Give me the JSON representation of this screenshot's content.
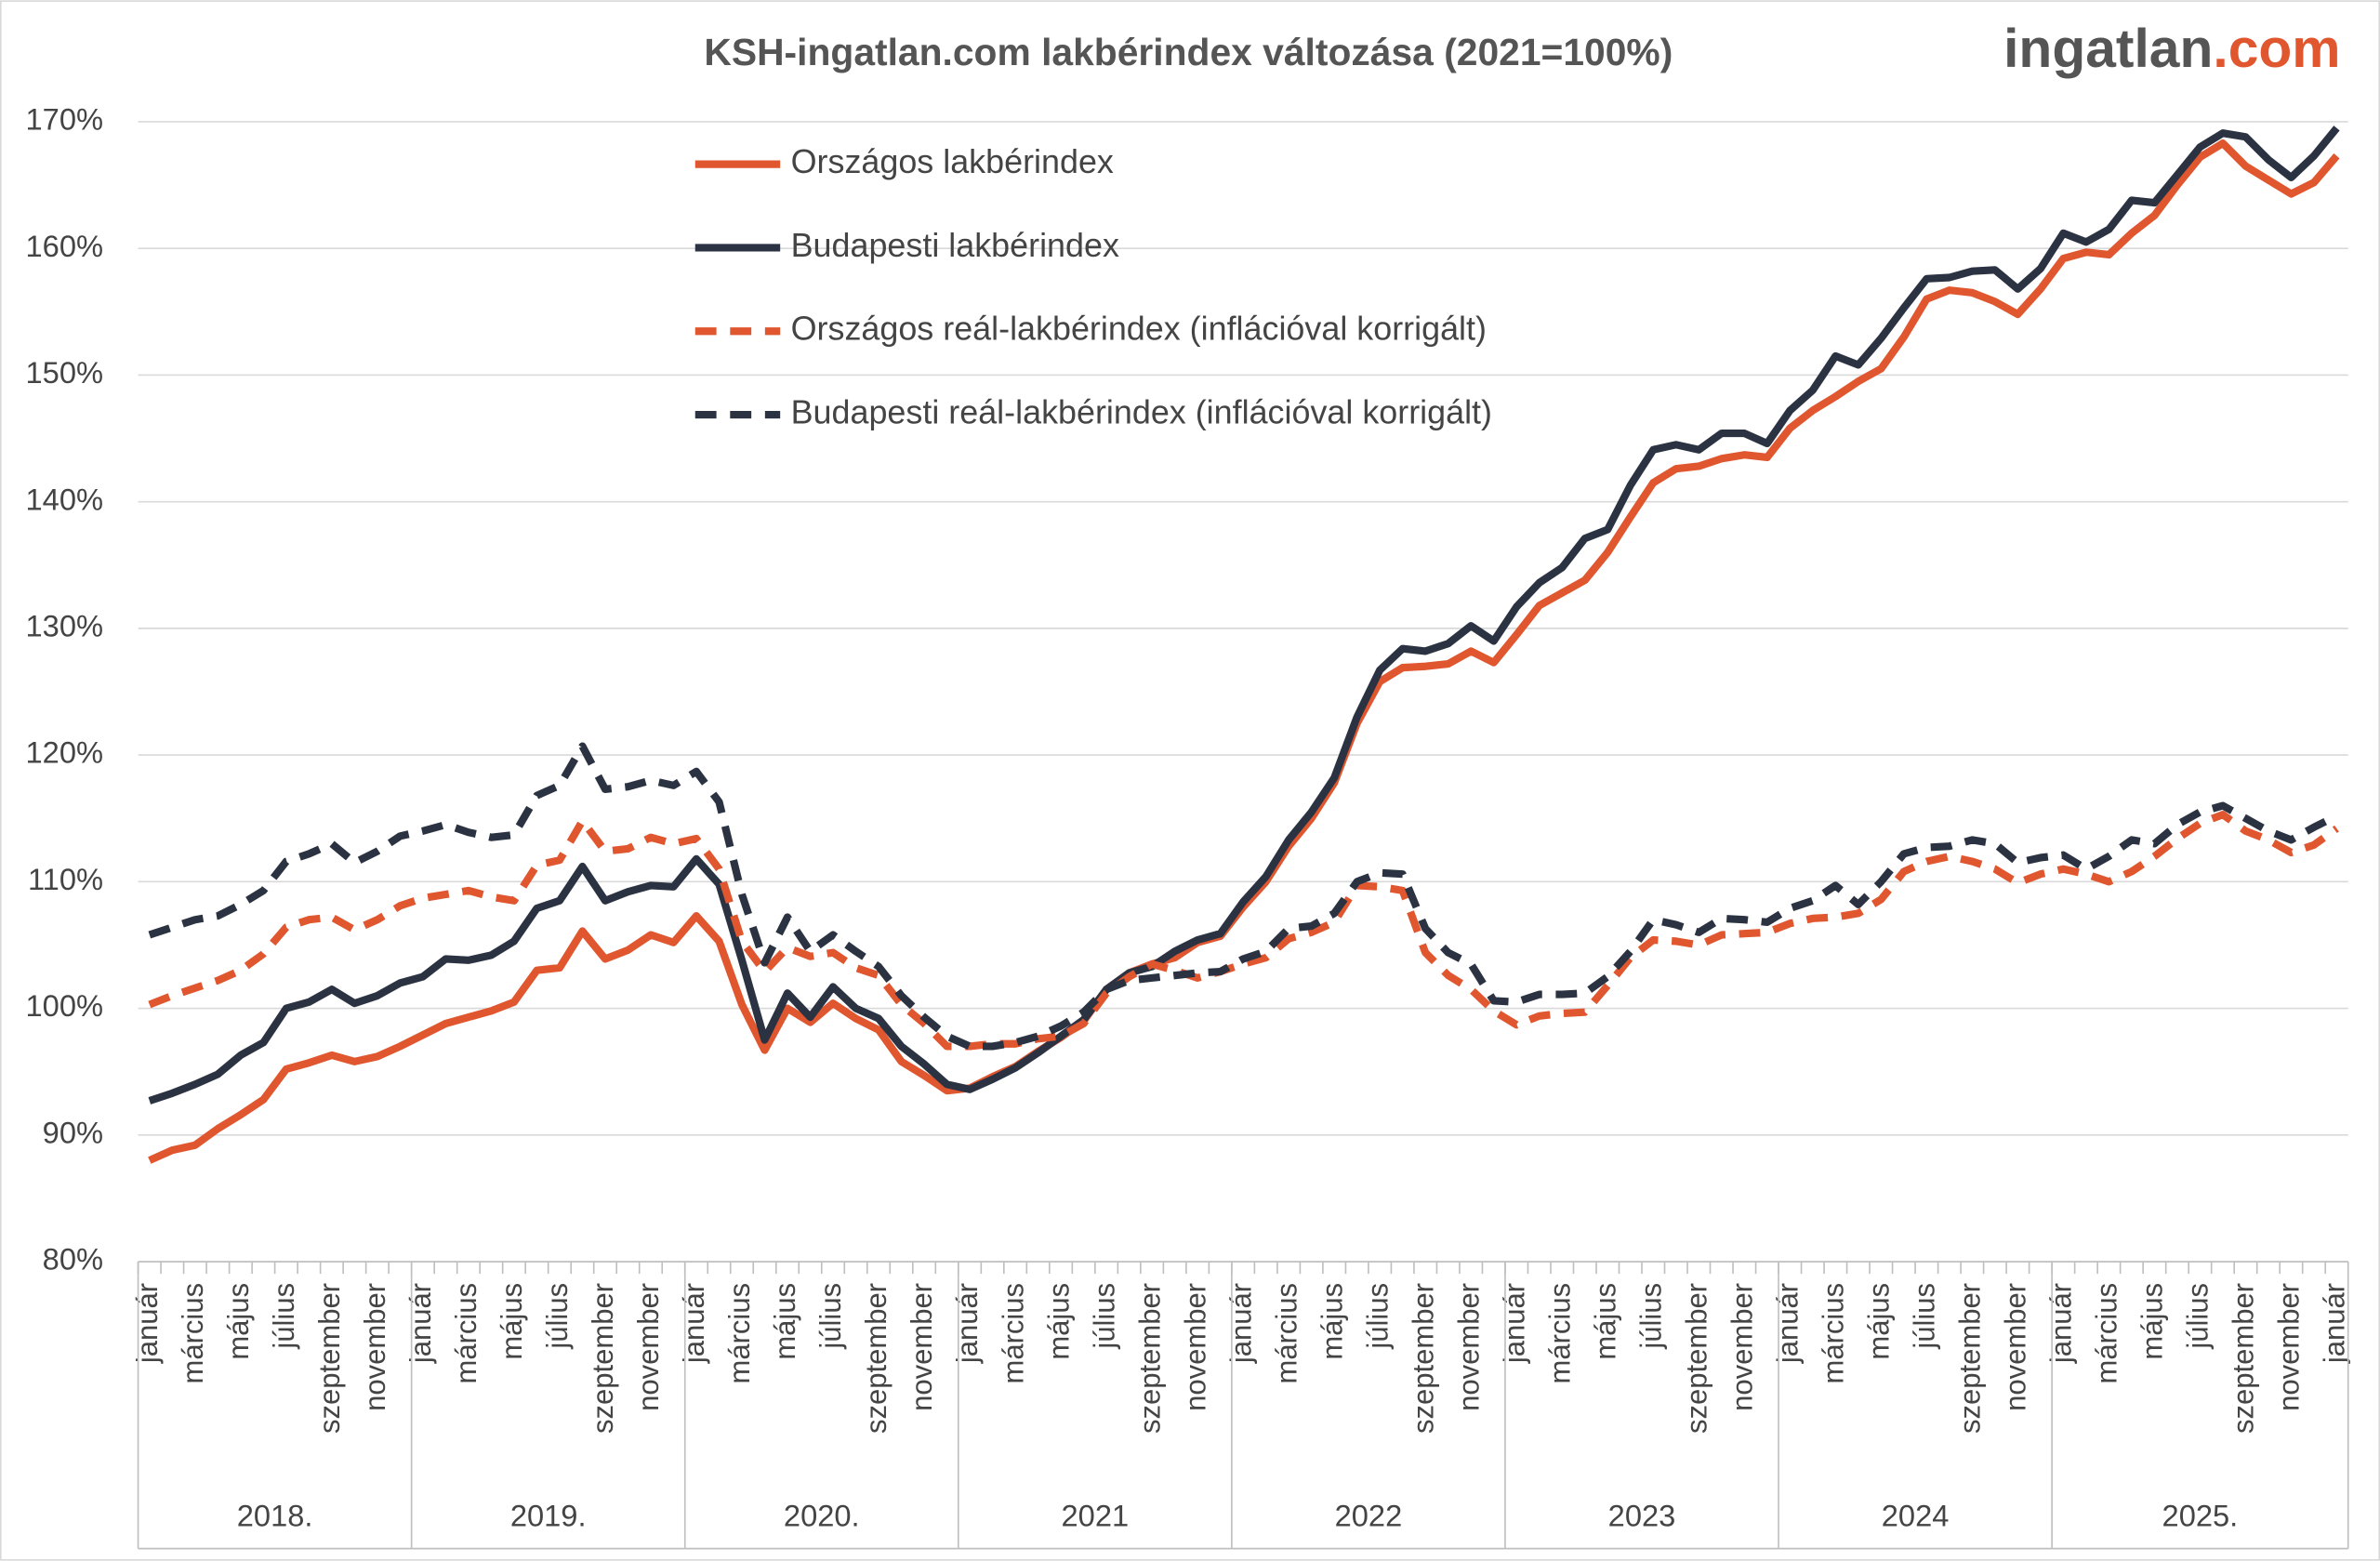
{
  "chart_data": {
    "type": "line",
    "title": "KSH-ingatlan.com lakbérindex változása (2021=100%)",
    "logo": {
      "name": "ingatlan",
      "suffix": ".com"
    },
    "categories": [
      "január",
      null,
      "március",
      null,
      "május",
      null,
      "július",
      null,
      "szeptember",
      null,
      "november",
      null,
      "január",
      null,
      "március",
      null,
      "május",
      null,
      "július",
      null,
      "szeptember",
      null,
      "november",
      null,
      "január",
      null,
      "március",
      null,
      "május",
      null,
      "július",
      null,
      "szeptember",
      null,
      "november",
      null,
      "január",
      null,
      "március",
      null,
      "május",
      null,
      "július",
      null,
      "szeptember",
      null,
      "november",
      null,
      "január",
      null,
      "március",
      null,
      "május",
      null,
      "július",
      null,
      "szeptember",
      null,
      "november",
      null,
      "január",
      null,
      "március",
      null,
      "május",
      null,
      "július",
      null,
      "szeptember",
      null,
      "november",
      null,
      "január",
      null,
      "március",
      null,
      "május",
      null,
      "július",
      null,
      "szeptember",
      null,
      "november",
      null,
      "január",
      null,
      "március",
      null,
      "május",
      null,
      "július",
      null,
      "szeptember",
      null,
      "november",
      null,
      "január"
    ],
    "x_groups": [
      "2018.",
      "2019.",
      "2020.",
      "2021",
      "2022",
      "2023",
      "2024",
      "2025."
    ],
    "series": [
      {
        "name": "Országos lakbérindex",
        "color": "#e0562f",
        "style": "solid",
        "values": [
          88.0,
          88.8,
          89.2,
          90.5,
          91.6,
          92.8,
          95.2,
          95.7,
          96.3,
          95.8,
          96.2,
          97.0,
          97.9,
          98.8,
          99.3,
          99.8,
          100.5,
          103.0,
          103.2,
          106.1,
          103.9,
          104.6,
          105.8,
          105.2,
          107.3,
          105.3,
          100.3,
          96.7,
          100.0,
          98.9,
          100.4,
          99.2,
          98.3,
          95.8,
          94.7,
          93.5,
          93.7,
          94.6,
          95.4,
          96.6,
          97.7,
          99.0,
          101.5,
          102.8,
          103.5,
          104.0,
          105.2,
          105.7,
          108.0,
          110.0,
          112.8,
          115.0,
          117.8,
          122.5,
          125.8,
          126.9,
          127.0,
          127.2,
          128.2,
          127.3,
          129.5,
          131.8,
          132.8,
          133.8,
          136.0,
          138.8,
          141.5,
          142.6,
          142.8,
          143.4,
          143.7,
          143.5,
          145.8,
          147.2,
          148.3,
          149.5,
          150.5,
          153.0,
          156.0,
          156.7,
          156.5,
          155.8,
          154.8,
          156.8,
          159.2,
          159.7,
          159.5,
          161.2,
          162.6,
          165.0,
          167.2,
          168.3,
          166.5,
          165.4,
          164.3,
          165.2,
          167.3
        ]
      },
      {
        "name": "Budapesti lakbérindex",
        "color": "#2b3342",
        "style": "solid",
        "values": [
          92.7,
          93.3,
          94.0,
          94.8,
          96.3,
          97.3,
          100.0,
          100.5,
          101.5,
          100.4,
          101.0,
          102.0,
          102.5,
          103.9,
          103.8,
          104.2,
          105.3,
          107.9,
          108.5,
          111.2,
          108.5,
          109.2,
          109.7,
          109.6,
          111.8,
          109.8,
          103.8,
          97.5,
          101.2,
          99.3,
          101.7,
          100.0,
          99.2,
          97.0,
          95.6,
          94.0,
          93.6,
          94.4,
          95.3,
          96.5,
          97.8,
          99.1,
          101.5,
          102.8,
          103.3,
          104.5,
          105.4,
          105.9,
          108.4,
          110.4,
          113.3,
          115.5,
          118.2,
          123.0,
          126.7,
          128.4,
          128.2,
          128.8,
          130.2,
          129.0,
          131.7,
          133.6,
          134.8,
          137.1,
          137.8,
          141.3,
          144.1,
          144.5,
          144.1,
          145.4,
          145.4,
          144.6,
          147.2,
          148.8,
          151.5,
          150.8,
          152.9,
          155.3,
          157.6,
          157.7,
          158.2,
          158.3,
          156.8,
          158.4,
          161.2,
          160.5,
          161.5,
          163.8,
          163.6,
          165.8,
          168.0,
          169.1,
          168.8,
          167.0,
          165.6,
          167.3,
          169.5
        ]
      },
      {
        "name": "Országos reál-lakbérindex (inflációval korrigált)",
        "color": "#e0562f",
        "style": "dashed",
        "values": [
          100.3,
          101.0,
          101.6,
          102.2,
          103.0,
          104.3,
          106.4,
          107.0,
          107.2,
          106.2,
          107.0,
          108.1,
          108.7,
          109.0,
          109.3,
          108.8,
          108.5,
          111.3,
          111.7,
          114.8,
          112.4,
          112.6,
          113.5,
          113.0,
          113.4,
          111.0,
          105.3,
          102.9,
          104.8,
          104.1,
          104.4,
          103.2,
          102.6,
          100.3,
          98.8,
          97.0,
          97.0,
          97.2,
          97.2,
          97.6,
          97.8,
          98.8,
          101.2,
          102.5,
          103.5,
          103.0,
          102.4,
          102.9,
          103.5,
          104.0,
          105.5,
          106.0,
          106.8,
          109.7,
          109.6,
          109.3,
          104.4,
          102.6,
          101.5,
          99.8,
          98.7,
          99.4,
          99.6,
          99.7,
          101.8,
          104.0,
          105.4,
          105.3,
          105.0,
          105.8,
          105.9,
          106.0,
          106.7,
          107.1,
          107.2,
          107.5,
          108.6,
          110.8,
          111.6,
          112.0,
          111.6,
          111.0,
          109.9,
          110.6,
          111.0,
          110.6,
          110.0,
          110.8,
          112.0,
          113.4,
          114.6,
          115.3,
          114.0,
          113.3,
          112.3,
          112.9,
          114.2
        ]
      },
      {
        "name": "Budapesti reál-lakbérindex (inflációval korrigált)",
        "color": "#2b3342",
        "style": "dashed",
        "values": [
          105.8,
          106.4,
          107.0,
          107.3,
          108.2,
          109.3,
          111.6,
          112.2,
          113.0,
          111.5,
          112.4,
          113.6,
          114.0,
          114.5,
          113.9,
          113.5,
          113.7,
          116.8,
          117.6,
          120.7,
          117.3,
          117.5,
          118.0,
          117.6,
          118.7,
          116.3,
          109.0,
          103.6,
          107.2,
          104.5,
          105.8,
          104.5,
          103.3,
          101.0,
          99.3,
          97.8,
          97.0,
          97.0,
          97.3,
          97.8,
          98.6,
          99.7,
          101.5,
          102.2,
          102.4,
          102.6,
          102.8,
          102.9,
          103.9,
          104.5,
          106.3,
          106.5,
          107.5,
          110.0,
          110.7,
          110.6,
          106.3,
          104.4,
          103.5,
          100.6,
          100.5,
          101.1,
          101.1,
          101.2,
          102.5,
          104.5,
          107.0,
          106.6,
          106.0,
          107.1,
          107.0,
          106.8,
          107.9,
          108.5,
          109.7,
          108.2,
          110.0,
          112.2,
          112.7,
          112.8,
          113.3,
          113.0,
          111.5,
          111.9,
          112.1,
          111.0,
          112.0,
          113.3,
          113.0,
          114.5,
          115.5,
          116.0,
          115.0,
          114.0,
          113.3,
          114.3,
          115.2
        ]
      }
    ],
    "ylim": [
      80,
      170
    ],
    "yticks": [
      {
        "value": 80,
        "label": "80%"
      },
      {
        "value": 90,
        "label": "90%"
      },
      {
        "value": 100,
        "label": "100%"
      },
      {
        "value": 110,
        "label": "110%"
      },
      {
        "value": 120,
        "label": "120%"
      },
      {
        "value": 130,
        "label": "130%"
      },
      {
        "value": 140,
        "label": "140%"
      },
      {
        "value": 150,
        "label": "150%"
      },
      {
        "value": 160,
        "label": "160%"
      },
      {
        "value": 170,
        "label": "170%"
      }
    ],
    "grid": true,
    "legend": "top"
  }
}
